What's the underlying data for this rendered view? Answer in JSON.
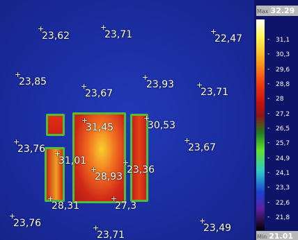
{
  "readings": [
    "23,62",
    "23,71",
    "22,47",
    "23,85",
    "23,67",
    "23,93",
    "23,71",
    "31,45",
    "30,53",
    "23,76",
    "31,01",
    "28,93",
    "23,36",
    "23,67",
    "28,31",
    "27,3",
    "23,76",
    "23,71",
    "23,49"
  ],
  "scale": {
    "max_label": "Max",
    "max": "32.29",
    "min_label": "Min",
    "min": "21.01",
    "ticks": [
      "31,1",
      "30,3",
      "29,6",
      "28,8",
      "28",
      "27,2",
      "26,5",
      "25,7",
      "24,9",
      "24,1",
      "23,3",
      "22,6",
      "21,8"
    ]
  }
}
